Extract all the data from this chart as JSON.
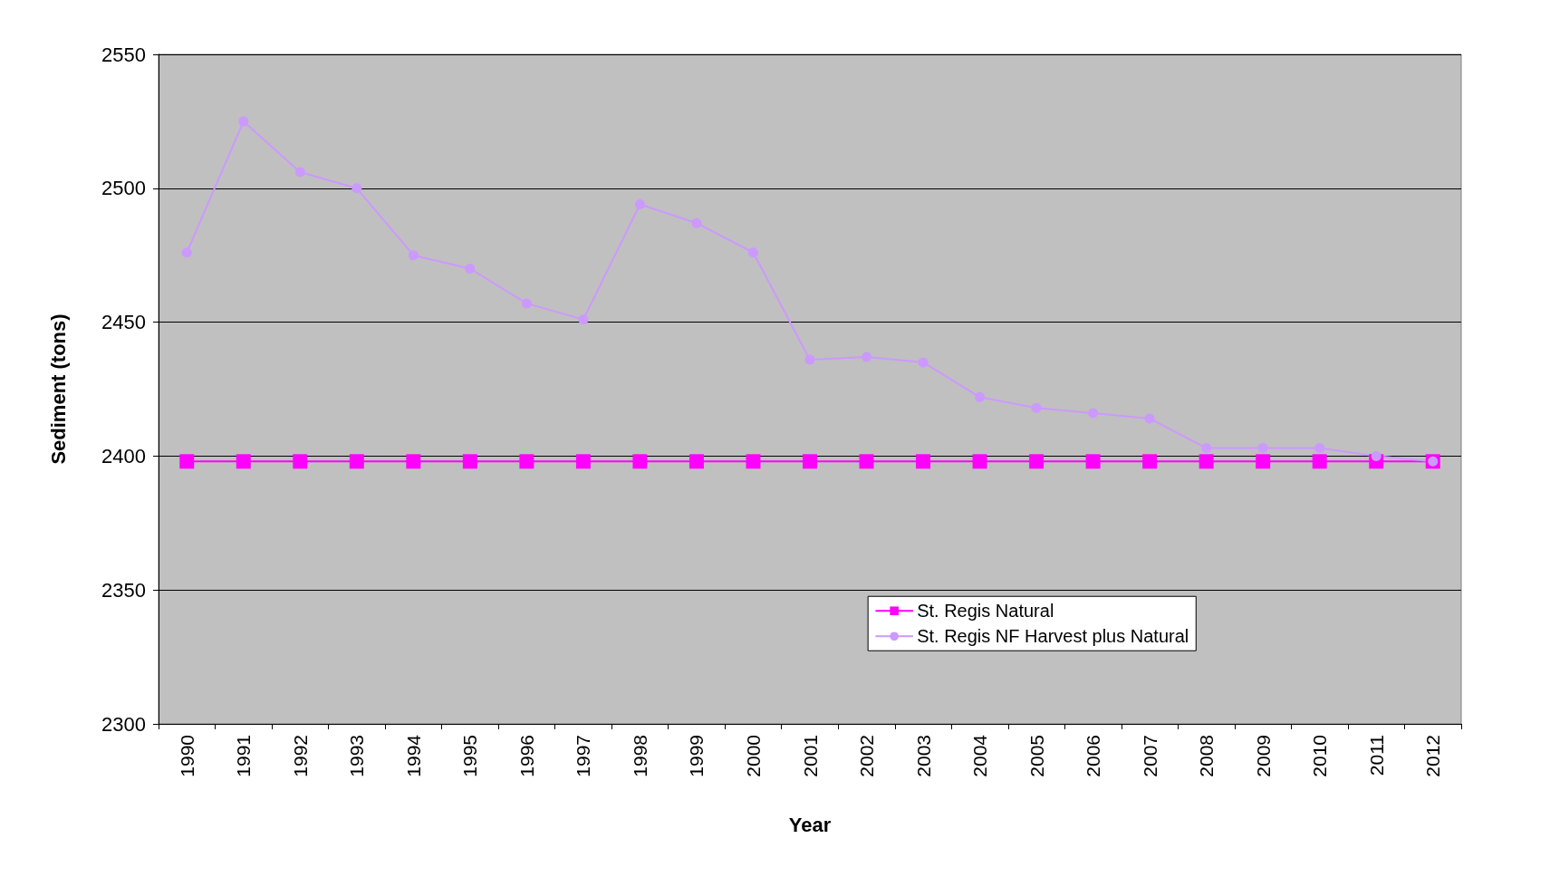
{
  "chart_data": {
    "type": "line",
    "xlabel": "Year",
    "ylabel": "Sediment (tons)",
    "categories": [
      "1990",
      "1991",
      "1992",
      "1993",
      "1994",
      "1995",
      "1996",
      "1997",
      "1998",
      "1999",
      "2000",
      "2001",
      "2002",
      "2003",
      "2004",
      "2005",
      "2006",
      "2007",
      "2008",
      "2009",
      "2010",
      "2011",
      "2012"
    ],
    "series": [
      {
        "name": "St. Regis Natural",
        "color": "#ff00ff",
        "marker": "square",
        "values": [
          2398,
          2398,
          2398,
          2398,
          2398,
          2398,
          2398,
          2398,
          2398,
          2398,
          2398,
          2398,
          2398,
          2398,
          2398,
          2398,
          2398,
          2398,
          2398,
          2398,
          2398,
          2398,
          2398
        ]
      },
      {
        "name": "St. Regis NF Harvest plus Natural",
        "color": "#cc99ff",
        "marker": "circle",
        "values": [
          2476,
          2525,
          2506,
          2500,
          2475,
          2470,
          2457,
          2451,
          2494,
          2487,
          2476,
          2436,
          2437,
          2435,
          2422,
          2418,
          2416,
          2414,
          2403,
          2403,
          2403,
          2400,
          2398
        ]
      }
    ],
    "ylim": [
      2300,
      2550
    ],
    "yticks": [
      2300,
      2350,
      2400,
      2450,
      2500,
      2550
    ],
    "grid": "y",
    "legend": "bottom right"
  }
}
